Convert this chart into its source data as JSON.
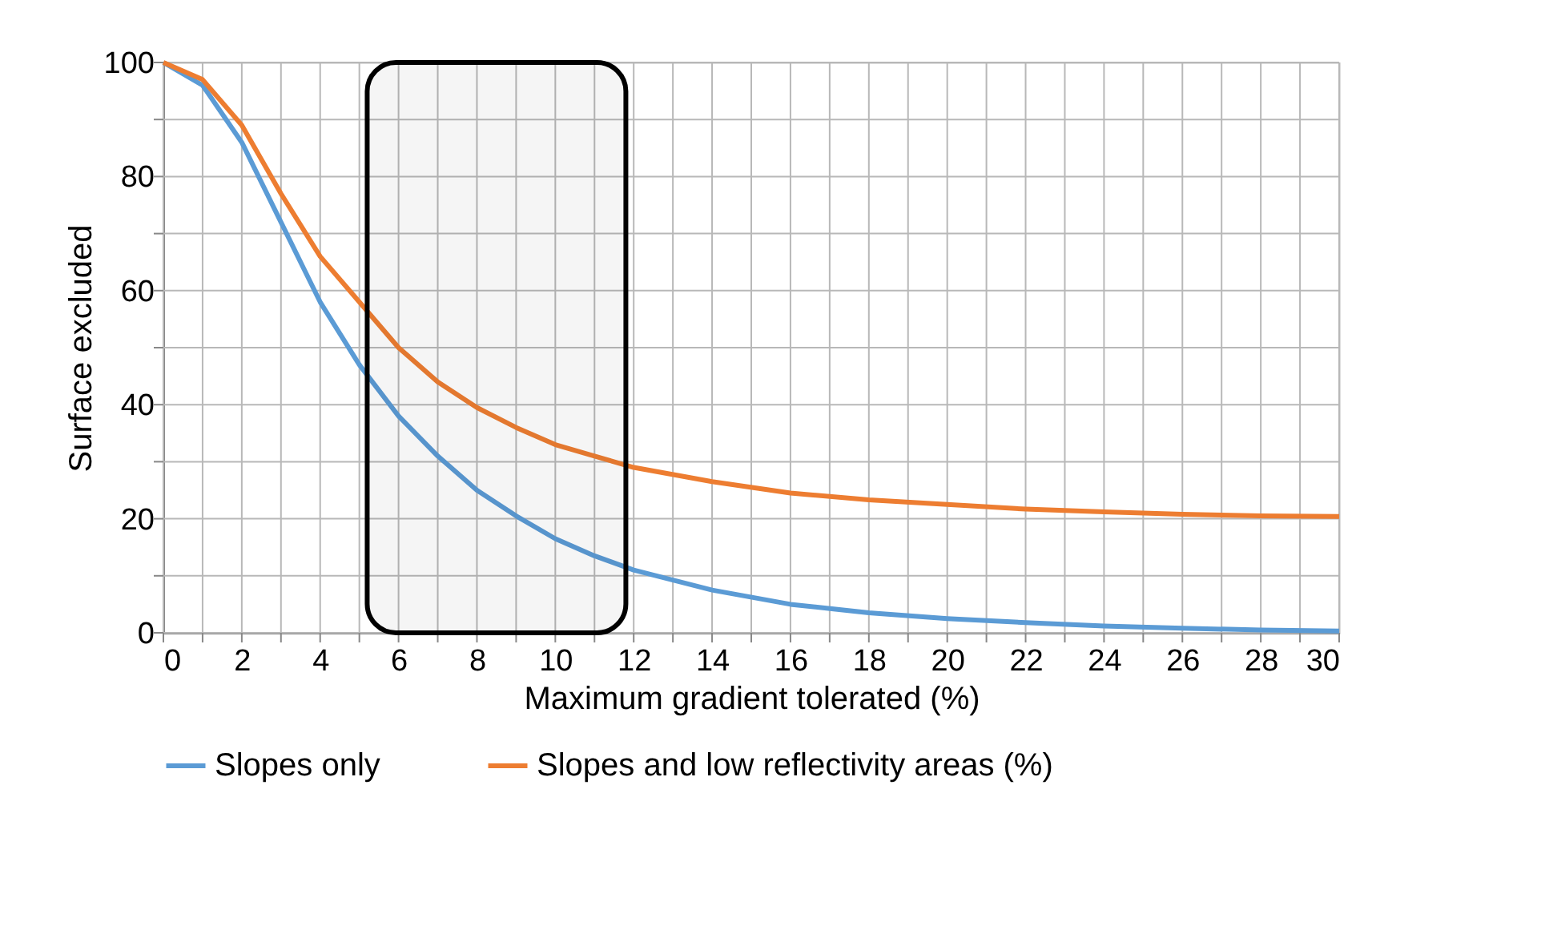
{
  "chart_data": {
    "type": "line",
    "xlabel": "Maximum gradient tolerated (%)",
    "ylabel": "Surface excluded",
    "x": [
      0,
      1,
      2,
      3,
      4,
      5,
      6,
      7,
      8,
      9,
      10,
      11,
      12,
      14,
      16,
      18,
      20,
      22,
      24,
      26,
      28,
      30
    ],
    "series": [
      {
        "name": "Slopes only",
        "color": "#5b9bd5",
        "values": [
          100,
          96,
          86,
          72,
          58,
          47,
          38,
          31,
          25,
          20.5,
          16.5,
          13.5,
          11,
          7.5,
          5,
          3.5,
          2.5,
          1.8,
          1.2,
          0.8,
          0.5,
          0.3
        ]
      },
      {
        "name": "Slopes and low reflectivity areas (%)",
        "color": "#ed7d31",
        "values": [
          100,
          97,
          89,
          77,
          66,
          58,
          50,
          44,
          39.5,
          36,
          33,
          31,
          29,
          26.5,
          24.5,
          23.3,
          22.5,
          21.7,
          21.2,
          20.8,
          20.5,
          20.4
        ]
      }
    ],
    "xlim": [
      0,
      30
    ],
    "xticks": [
      0,
      {
        "value": 1,
        "label": null
      },
      2,
      {
        "value": 3,
        "label": null
      },
      4,
      {
        "value": 5,
        "label": null
      },
      6,
      {
        "value": 7,
        "label": null
      },
      8,
      {
        "value": 9,
        "label": null
      },
      10,
      {
        "value": 11,
        "label": null
      },
      12,
      {
        "value": 13,
        "label": null
      },
      14,
      {
        "value": 15,
        "label": null
      },
      16,
      {
        "value": 17,
        "label": null
      },
      18,
      {
        "value": 19,
        "label": null
      },
      20,
      {
        "value": 21,
        "label": null
      },
      22,
      {
        "value": 23,
        "label": null
      },
      24,
      {
        "value": 25,
        "label": null
      },
      26,
      {
        "value": 27,
        "label": null
      },
      28,
      {
        "value": 29,
        "label": null
      },
      30
    ],
    "ylim": [
      0,
      100
    ],
    "yticks": [
      0,
      {
        "value": 10,
        "label": null
      },
      20,
      {
        "value": 30,
        "label": null
      },
      40,
      {
        "value": 50,
        "label": null
      },
      60,
      {
        "value": 70,
        "label": null
      },
      80,
      {
        "value": 90,
        "label": null
      },
      100
    ],
    "bands": [
      {
        "axis": "x",
        "from": 5.2,
        "to": 11.8,
        "color": "#000000"
      }
    ],
    "grid": true,
    "legend": "bottom",
    "marker": "none",
    "line_style": "solid"
  }
}
